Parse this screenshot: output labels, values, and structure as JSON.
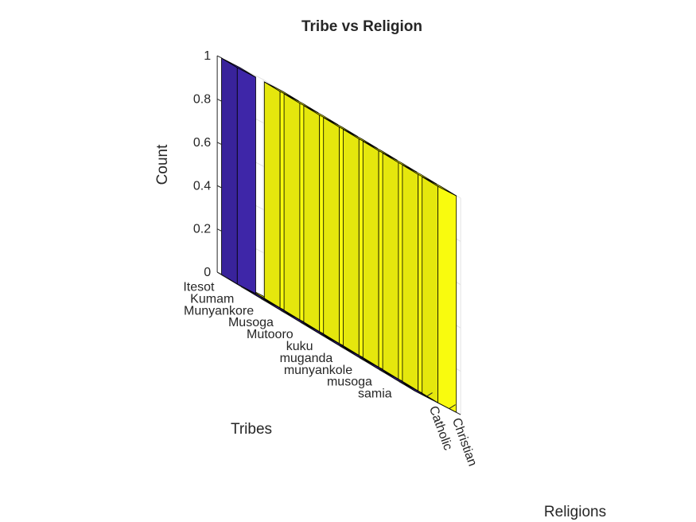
{
  "chart_data": {
    "type": "bar",
    "bar_style": "3d",
    "title": "Tribe vs Religion",
    "zlabel": "Count",
    "xlabel": "Tribes",
    "ylabel": "Religions",
    "zlim": [
      0,
      1
    ],
    "zticks": [
      "0",
      "0.2",
      "0.4",
      "0.6",
      "0.8",
      "1"
    ],
    "categories": [
      "Itesot",
      "Kumam",
      "Munyankore",
      "Musoga",
      "Mutooro",
      "kuku",
      "muganda",
      "munyankole",
      "musoga",
      "samia"
    ],
    "series": [
      {
        "name": "Catholic",
        "color": "#3e26a8",
        "values": [
          1,
          0,
          0,
          0,
          0,
          0,
          0,
          0,
          0,
          0
        ]
      },
      {
        "name": "Christian",
        "color": "#f9fb0e",
        "values": [
          0,
          1,
          1,
          1,
          1,
          1,
          1,
          1,
          1,
          1
        ]
      }
    ],
    "grid": true
  }
}
